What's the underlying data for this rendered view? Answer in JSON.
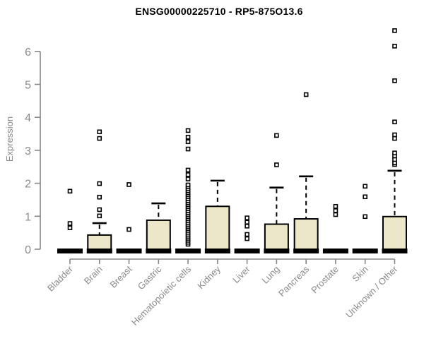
{
  "title": "ENSG00000225710 - RP5-875O13.6",
  "colors": {
    "box_fill": "#EDE7C9",
    "box_border": "#000000",
    "median_bar": "#000000",
    "whisker": "#000000",
    "outlier_fill": "#ffffff",
    "outlier_border": "#000000",
    "axis": "#878787",
    "tick_label": "#8a8a8a",
    "title_color": "#000000"
  },
  "chart_data": {
    "type": "boxplot",
    "title": "ENSG00000225710 - RP5-875O13.6",
    "ylabel": "Expression",
    "xlabel": "",
    "ylim": [
      0,
      6.8
    ],
    "yticks": [
      0,
      1,
      2,
      3,
      4,
      5,
      6
    ],
    "grid": false,
    "legend": "none",
    "categories": [
      "Bladder",
      "Brain",
      "Breast",
      "Gastric",
      "Hematopoietic cells",
      "Kidney",
      "Liver",
      "Lung",
      "Pancreas",
      "Prostate",
      "Skin",
      "Unknown / Other"
    ],
    "boxes": [
      {
        "category": "Bladder",
        "q1": 0,
        "median": 0,
        "q3": 0,
        "whisker_low": 0,
        "whisker_high": 0,
        "outliers": [
          0.65,
          0.78,
          1.76
        ]
      },
      {
        "category": "Brain",
        "q1": 0,
        "median": 0,
        "q3": 0.43,
        "whisker_low": 0,
        "whisker_high": 0.79,
        "outliers": [
          1.01,
          1.2,
          1.58,
          1.99,
          3.36,
          3.56
        ]
      },
      {
        "category": "Breast",
        "q1": 0,
        "median": 0,
        "q3": 0,
        "whisker_low": 0,
        "whisker_high": 0,
        "outliers": [
          0.6,
          1.96
        ]
      },
      {
        "category": "Gastric",
        "q1": 0,
        "median": 0,
        "q3": 0.88,
        "whisker_low": 0,
        "whisker_high": 1.39,
        "outliers": []
      },
      {
        "category": "Hematopoietic cells",
        "q1": 0,
        "median": 0,
        "q3": 0,
        "whisker_low": 0,
        "whisker_high": 0,
        "outliers": [
          0.15,
          0.21,
          0.27,
          0.33,
          0.39,
          0.45,
          0.51,
          0.57,
          0.63,
          0.69,
          0.75,
          0.81,
          0.87,
          0.93,
          0.99,
          1.05,
          1.11,
          1.17,
          1.23,
          1.29,
          1.35,
          1.41,
          1.47,
          1.53,
          1.59,
          1.65,
          1.71,
          1.77,
          1.83,
          1.89,
          1.95,
          2.13,
          2.26,
          2.4,
          3.04,
          3.26,
          3.4,
          3.6
        ]
      },
      {
        "category": "Kidney",
        "q1": 0,
        "median": 0,
        "q3": 1.3,
        "whisker_low": 0,
        "whisker_high": 2.08,
        "outliers": []
      },
      {
        "category": "Liver",
        "q1": 0,
        "median": 0,
        "q3": 0,
        "whisker_low": 0,
        "whisker_high": 0,
        "outliers": [
          0.32,
          0.45,
          0.7,
          0.82,
          0.95
        ]
      },
      {
        "category": "Lung",
        "q1": 0,
        "median": 0,
        "q3": 0.76,
        "whisker_low": 0,
        "whisker_high": 1.87,
        "outliers": [
          2.56,
          3.45
        ]
      },
      {
        "category": "Pancreas",
        "q1": 0,
        "median": 0,
        "q3": 0.92,
        "whisker_low": 0,
        "whisker_high": 2.21,
        "outliers": [
          4.69
        ]
      },
      {
        "category": "Prostate",
        "q1": 0,
        "median": 0,
        "q3": 0,
        "whisker_low": 0,
        "whisker_high": 0,
        "outliers": [
          1.05,
          1.17,
          1.3
        ]
      },
      {
        "category": "Skin",
        "q1": 0,
        "median": 0,
        "q3": 0,
        "whisker_low": 0,
        "whisker_high": 0,
        "outliers": [
          0.99,
          1.59,
          1.91
        ]
      },
      {
        "category": "Unknown / Other",
        "q1": 0,
        "median": 0,
        "q3": 0.99,
        "whisker_low": 0,
        "whisker_high": 2.38,
        "outliers": [
          2.57,
          2.62,
          2.72,
          2.83,
          2.92,
          3.36,
          3.47,
          3.86,
          5.11,
          6.16,
          6.63
        ]
      }
    ]
  }
}
